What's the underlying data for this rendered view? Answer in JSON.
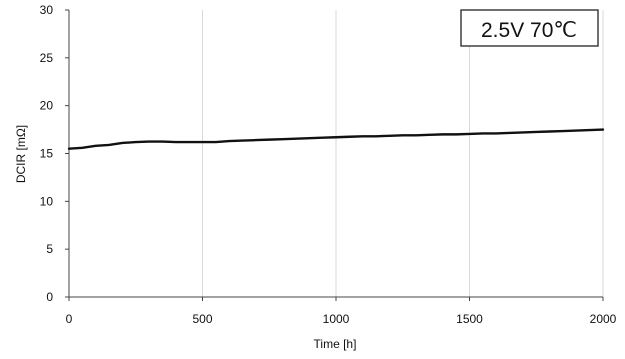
{
  "chart_data": {
    "type": "line",
    "title": "",
    "xlabel": "Time [h]",
    "ylabel": "DCIR [mΩ]",
    "xlim": [
      0,
      2000
    ],
    "ylim": [
      0,
      30
    ],
    "x_ticks": [
      0,
      500,
      1000,
      1500,
      2000
    ],
    "y_ticks": [
      0,
      5,
      10,
      15,
      20,
      25,
      30
    ],
    "grid": "vertical",
    "annotations": [
      "2.5V 70℃"
    ],
    "line_color": "#111111",
    "series": [
      {
        "x": [
          0,
          50,
          100,
          150,
          200,
          250,
          300,
          350,
          400,
          450,
          500,
          550,
          600,
          650,
          700,
          750,
          800,
          850,
          900,
          950,
          1000,
          1050,
          1100,
          1150,
          1200,
          1250,
          1300,
          1350,
          1400,
          1450,
          1500,
          1550,
          1600,
          1650,
          1700,
          1750,
          1800,
          1850,
          1900,
          1950,
          2000
        ],
        "y": [
          15.5,
          15.6,
          15.8,
          15.9,
          16.1,
          16.2,
          16.25,
          16.25,
          16.2,
          16.2,
          16.2,
          16.2,
          16.3,
          16.35,
          16.4,
          16.45,
          16.5,
          16.55,
          16.6,
          16.65,
          16.7,
          16.75,
          16.8,
          16.8,
          16.85,
          16.9,
          16.9,
          16.95,
          17.0,
          17.0,
          17.05,
          17.1,
          17.1,
          17.15,
          17.2,
          17.25,
          17.3,
          17.35,
          17.4,
          17.45,
          17.5
        ]
      }
    ]
  }
}
